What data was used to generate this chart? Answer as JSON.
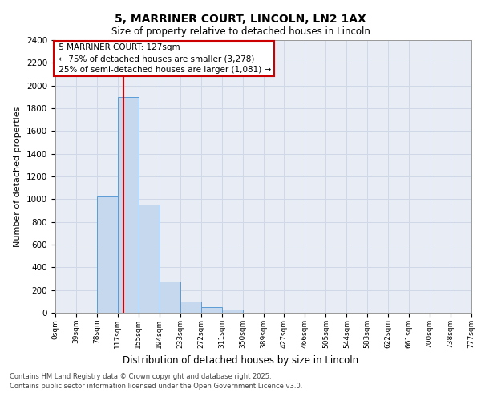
{
  "title": "5, MARRINER COURT, LINCOLN, LN2 1AX",
  "subtitle": "Size of property relative to detached houses in Lincoln",
  "xlabel": "Distribution of detached houses by size in Lincoln",
  "ylabel": "Number of detached properties",
  "bin_labels": [
    "0sqm",
    "39sqm",
    "78sqm",
    "117sqm",
    "155sqm",
    "194sqm",
    "233sqm",
    "272sqm",
    "311sqm",
    "350sqm",
    "389sqm",
    "427sqm",
    "466sqm",
    "505sqm",
    "544sqm",
    "583sqm",
    "622sqm",
    "661sqm",
    "700sqm",
    "738sqm",
    "777sqm"
  ],
  "bar_values": [
    0,
    0,
    1025,
    1900,
    950,
    275,
    100,
    50,
    25,
    0,
    0,
    0,
    0,
    0,
    0,
    0,
    0,
    0,
    0,
    0,
    0
  ],
  "bar_color": "#c5d8ed",
  "bar_edge_color": "#5b9bd5",
  "ylim": [
    0,
    2400
  ],
  "yticks": [
    0,
    200,
    400,
    600,
    800,
    1000,
    1200,
    1400,
    1600,
    1800,
    2000,
    2200,
    2400
  ],
  "property_size": 127,
  "property_label": "5 MARRINER COURT: 127sqm",
  "annotation_line1": "← 75% of detached houses are smaller (3,278)",
  "annotation_line2": "25% of semi-detached houses are larger (1,081) →",
  "vline_color": "#cc0000",
  "annotation_box_color": "#ffffff",
  "annotation_box_edge": "#cc0000",
  "grid_color": "#d0d8e8",
  "background_color": "#e8edf5",
  "footer_line1": "Contains HM Land Registry data © Crown copyright and database right 2025.",
  "footer_line2": "Contains public sector information licensed under the Open Government Licence v3.0.",
  "bin_width": 39
}
